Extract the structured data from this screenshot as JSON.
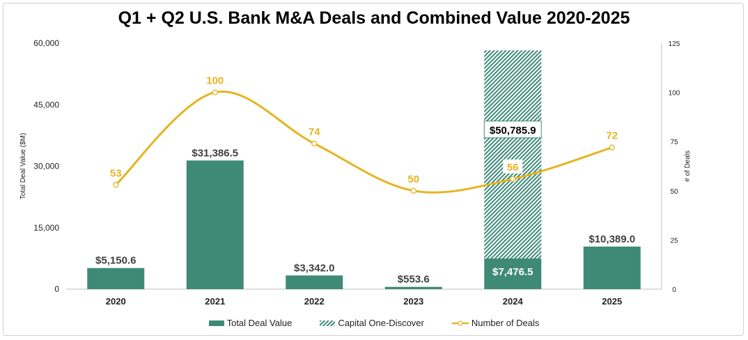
{
  "chart_data": {
    "type": "bar",
    "title": "Q1 + Q2 U.S. Bank M&A Deals and Combined Value 2020-2025",
    "categories": [
      "2020",
      "2021",
      "2022",
      "2023",
      "2024",
      "2025"
    ],
    "ylabel": "Total Deal Value ($M)",
    "y2label": "# of Deals",
    "ylim": [
      0,
      60000
    ],
    "y2lim": [
      0,
      125
    ],
    "yticks": [
      "0",
      "15,000",
      "30,000",
      "45,000",
      "60,000"
    ],
    "y2ticks": [
      "0",
      "25",
      "50",
      "75",
      "100",
      "125"
    ],
    "legend_position": "bottom",
    "grid": false,
    "series": [
      {
        "name": "Total Deal Value",
        "type": "bar",
        "color": "#3e8a77",
        "values": [
          5150.6,
          31386.5,
          3342.0,
          553.6,
          7476.5,
          10389.0
        ],
        "labels": [
          "$5,150.6",
          "$31,386.5",
          "$3,342.0",
          "$553.6",
          "$7,476.5",
          "$10,389.0"
        ]
      },
      {
        "name": "Capital One-Discover",
        "type": "bar-stacked-hatched",
        "color": "#3e8a77",
        "values": [
          0,
          0,
          0,
          0,
          50785.9,
          0
        ],
        "labels": [
          "",
          "",
          "",
          "",
          "$50,785.9",
          ""
        ]
      },
      {
        "name": "Number of Deals",
        "type": "line",
        "axis": "right",
        "color": "#e6b422",
        "values": [
          53,
          100,
          74,
          50,
          56,
          72
        ],
        "labels": [
          "53",
          "100",
          "74",
          "50",
          "56",
          "72"
        ]
      }
    ]
  }
}
